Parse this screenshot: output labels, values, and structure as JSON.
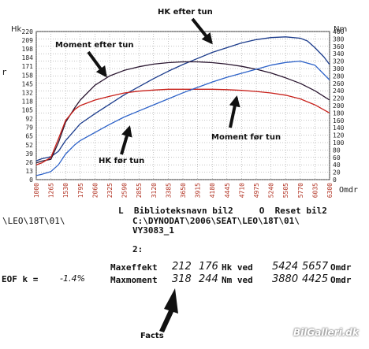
{
  "chart_data": {
    "type": "line",
    "x": [
      1000,
      1265,
      1530,
      1795,
      2060,
      2325,
      2590,
      2855,
      3120,
      3385,
      3650,
      3915,
      4180,
      4445,
      4710,
      4975,
      5240,
      5505,
      5770,
      6035,
      6300
    ],
    "x_ticks": [
      "1000",
      "1265",
      "1530",
      "1795",
      "2060",
      "2325",
      "2590",
      "2855",
      "3120",
      "3385",
      "3650",
      "3915",
      "4180",
      "4445",
      "4710",
      "4975",
      "5240",
      "5505",
      "5770",
      "6035",
      "6300"
    ],
    "xlabel": "Omdr",
    "xlim": [
      1000,
      6300
    ],
    "left_axis": {
      "label": "Hk",
      "ticks": [
        "0",
        "13",
        "26",
        "39",
        "52",
        "65",
        "79",
        "92",
        "105",
        "118",
        "132",
        "145",
        "158",
        "171",
        "184",
        "198",
        "209",
        "220"
      ],
      "range": [
        0,
        220
      ]
    },
    "right_axis": {
      "label": "Nm",
      "ticks": [
        "0",
        "20",
        "40",
        "60",
        "80",
        "100",
        "120",
        "140",
        "160",
        "180",
        "200",
        "220",
        "240",
        "260",
        "280",
        "300",
        "320",
        "340",
        "360",
        "380",
        "400"
      ],
      "range": [
        0,
        400
      ]
    },
    "series": [
      {
        "name": "HK efter tun",
        "axis": "left",
        "color": "#1c3c8c",
        "x": [
          1000,
          1100,
          1265,
          1400,
          1530,
          1700,
          1795,
          2060,
          2325,
          2590,
          2855,
          3120,
          3385,
          3650,
          3915,
          4180,
          4445,
          4710,
          4975,
          5240,
          5505,
          5770,
          5900,
          6035,
          6200,
          6300
        ],
        "y": [
          28,
          31,
          34,
          42,
          58,
          74,
          83,
          98,
          112,
          126,
          138,
          150,
          161,
          171,
          180,
          189,
          196,
          203,
          208,
          211,
          212,
          210,
          206,
          196,
          182,
          171
        ]
      },
      {
        "name": "Moment efter tun",
        "axis": "right",
        "color": "#2a1630",
        "x": [
          1000,
          1100,
          1265,
          1400,
          1530,
          1700,
          1795,
          2060,
          2325,
          2590,
          2855,
          3120,
          3385,
          3650,
          3915,
          4180,
          4445,
          4710,
          4975,
          5240,
          5505,
          5770,
          6035,
          6300
        ],
        "y": [
          45,
          50,
          55,
          100,
          155,
          195,
          215,
          255,
          280,
          295,
          305,
          312,
          316,
          318,
          318,
          316,
          312,
          306,
          298,
          288,
          275,
          260,
          240,
          215
        ]
      },
      {
        "name": "Moment før tun",
        "axis": "right",
        "color": "#c8201a",
        "x": [
          1000,
          1100,
          1265,
          1400,
          1530,
          1700,
          1795,
          2060,
          2325,
          2590,
          2855,
          3120,
          3385,
          3650,
          3915,
          4180,
          4445,
          4710,
          4975,
          5240,
          5505,
          5770,
          6035,
          6300
        ],
        "y": [
          40,
          45,
          60,
          110,
          160,
          190,
          200,
          215,
          225,
          234,
          239,
          242,
          244,
          244,
          244,
          244,
          243,
          241,
          238,
          234,
          228,
          218,
          202,
          180
        ]
      },
      {
        "name": "HK før tun",
        "axis": "left",
        "color": "#2d62c8",
        "x": [
          1000,
          1100,
          1265,
          1400,
          1530,
          1700,
          1795,
          2060,
          2325,
          2590,
          2855,
          3120,
          3385,
          3650,
          3915,
          4180,
          4445,
          4710,
          4975,
          5240,
          5505,
          5770,
          6035,
          6300
        ],
        "y": [
          6,
          8,
          12,
          22,
          38,
          52,
          58,
          70,
          82,
          93,
          102,
          111,
          120,
          129,
          137,
          145,
          152,
          158,
          164,
          170,
          174,
          176,
          170,
          148
        ]
      }
    ]
  },
  "annotations": {
    "hk_efter": "HK efter tun",
    "moment_efter": "Moment efter tun",
    "moment_foer": "Moment før tun",
    "hk_foer": "HK før tun",
    "facts": "Facts"
  },
  "axis_misc": {
    "r_mark": "r"
  },
  "info": {
    "path_left": "\\LEO\\18T\\01\\",
    "line1": "L  Biblioteksnavn bil2     O  Reset bil2",
    "line2": "C:\\DYNODAT\\2006\\SEAT\\LEO\\18T\\01\\",
    "line3": "VY3083_1",
    "line4": "2:",
    "max_effekt_label": "Maxeffekt",
    "max_effekt_v1": "212",
    "max_effekt_v2": "176",
    "max_effekt_unit": "Hk ved",
    "max_effekt_rpm1": "5424",
    "max_effekt_rpm2": "5657",
    "max_effekt_rpm_unit": "Omdr",
    "max_moment_label": "Maxmoment",
    "max_moment_v1": "318",
    "max_moment_v2": "244",
    "max_moment_unit": "Nm ved",
    "max_moment_rpm1": "3880",
    "max_moment_rpm2": "4425",
    "max_moment_rpm_unit": "Omdr",
    "eof_label": "EOF k =",
    "eof_value": "-1.4%"
  },
  "watermark": "BilGalleri.dk",
  "colors": {
    "background": "#ffffff",
    "grid": "#888888",
    "tick_text": "#b03020"
  }
}
